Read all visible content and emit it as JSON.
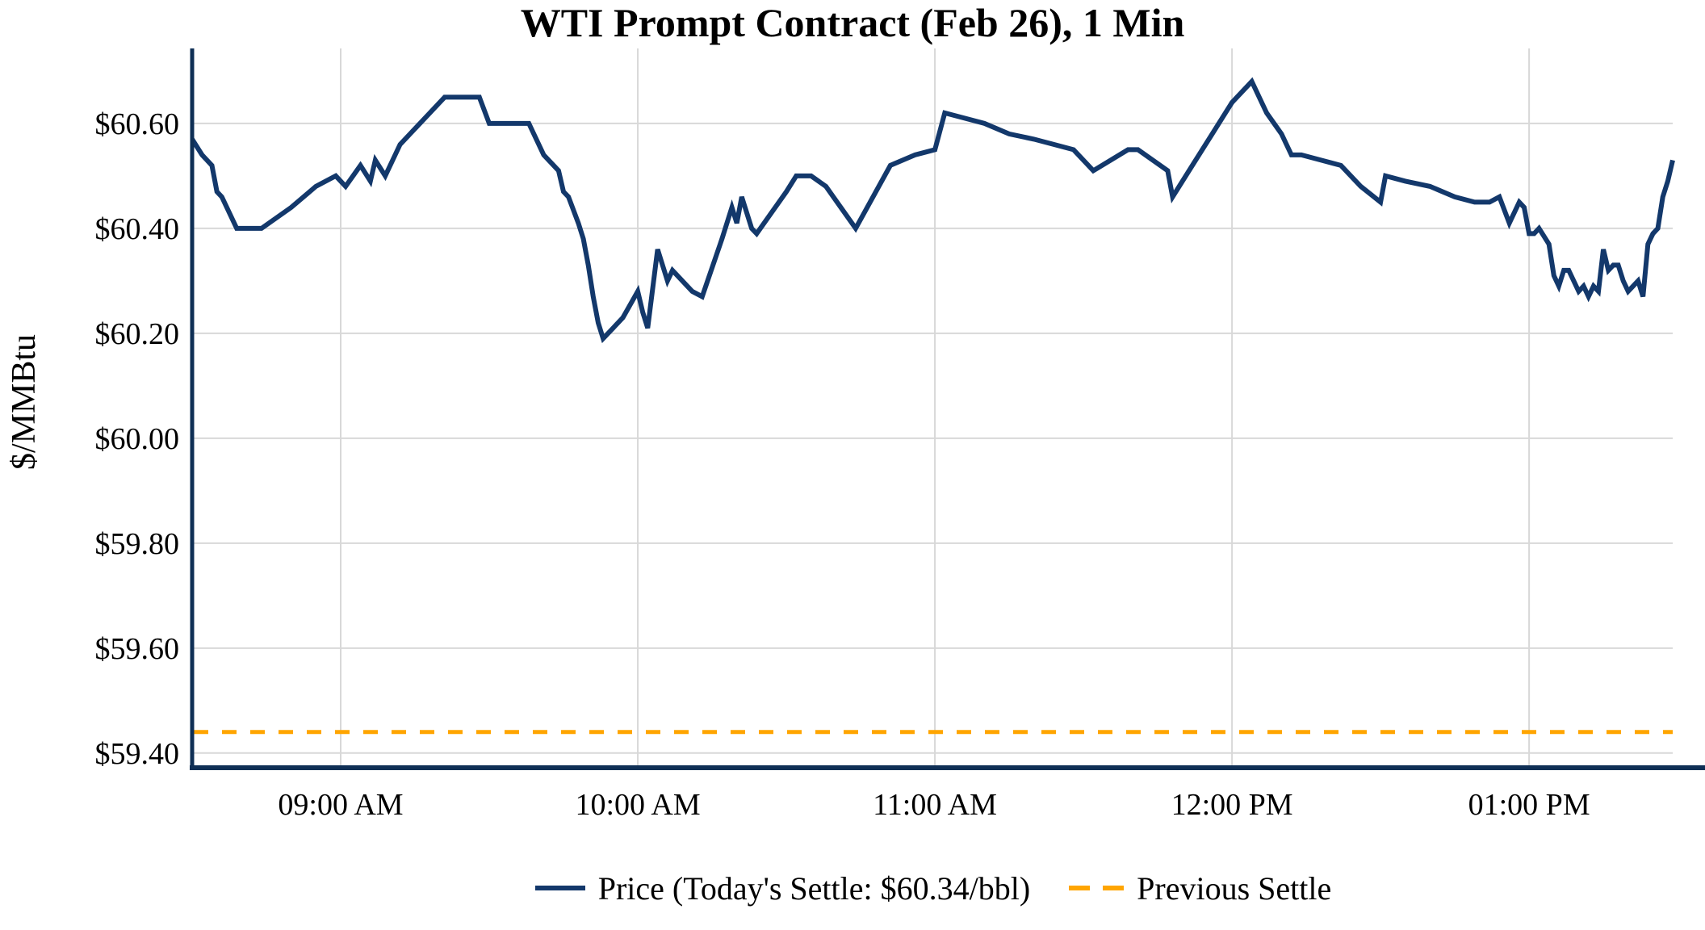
{
  "chart_data": {
    "type": "line",
    "title": "WTI Prompt Contract (Feb 26), 1 Min",
    "ylabel": "$/MMBtu",
    "grid": true,
    "legend_position": "bottom-center",
    "x_axis": {
      "xlim_minutes": [
        0,
        299
      ],
      "minutes_origin": "08:30 AM",
      "ticks": [
        {
          "minute": 30,
          "label": "09:00 AM"
        },
        {
          "minute": 90,
          "label": "10:00 AM"
        },
        {
          "minute": 150,
          "label": "11:00 AM"
        },
        {
          "minute": 210,
          "label": "12:00 PM"
        },
        {
          "minute": 270,
          "label": "01:00 PM"
        }
      ]
    },
    "y_axis": {
      "ylim": [
        59.372,
        60.743
      ],
      "ticks": [
        {
          "value": 60.6,
          "label": "$60.60"
        },
        {
          "value": 60.4,
          "label": "$60.40"
        },
        {
          "value": 60.2,
          "label": "$60.20"
        },
        {
          "value": 60.0,
          "label": "$60.00"
        },
        {
          "value": 59.8,
          "label": "$59.80"
        },
        {
          "value": 59.6,
          "label": "$59.60"
        },
        {
          "value": 59.4,
          "label": "$59.40"
        }
      ]
    },
    "today_settle_per_bbl": 60.34,
    "previous_settle": 59.44,
    "series": [
      {
        "name": "Price (Today's Settle: $60.34/bbl)",
        "kind": "line",
        "style": "solid",
        "color": "#13386b",
        "points_min_price": [
          [
            0,
            60.57
          ],
          [
            2,
            60.54
          ],
          [
            4,
            60.52
          ],
          [
            5,
            60.47
          ],
          [
            6,
            60.46
          ],
          [
            9,
            60.4
          ],
          [
            14,
            60.4
          ],
          [
            20,
            60.44
          ],
          [
            25,
            60.48
          ],
          [
            29,
            60.5
          ],
          [
            31,
            60.48
          ],
          [
            34,
            60.52
          ],
          [
            36,
            60.49
          ],
          [
            37,
            60.53
          ],
          [
            39,
            60.5
          ],
          [
            42,
            60.56
          ],
          [
            45,
            60.59
          ],
          [
            48,
            60.62
          ],
          [
            51,
            60.65
          ],
          [
            58,
            60.65
          ],
          [
            60,
            60.6
          ],
          [
            68,
            60.6
          ],
          [
            71,
            60.54
          ],
          [
            74,
            60.51
          ],
          [
            75,
            60.47
          ],
          [
            76,
            60.46
          ],
          [
            78,
            60.41
          ],
          [
            79,
            60.38
          ],
          [
            80,
            60.33
          ],
          [
            81,
            60.27
          ],
          [
            82,
            60.22
          ],
          [
            83,
            60.19
          ],
          [
            85,
            60.21
          ],
          [
            87,
            60.23
          ],
          [
            90,
            60.28
          ],
          [
            91,
            60.24
          ],
          [
            92,
            60.21
          ],
          [
            94,
            60.36
          ],
          [
            95,
            60.33
          ],
          [
            96,
            60.3
          ],
          [
            97,
            60.32
          ],
          [
            101,
            60.28
          ],
          [
            103,
            60.27
          ],
          [
            107,
            60.38
          ],
          [
            109,
            60.44
          ],
          [
            110,
            60.41
          ],
          [
            111,
            60.46
          ],
          [
            113,
            60.4
          ],
          [
            114,
            60.39
          ],
          [
            117,
            60.43
          ],
          [
            120,
            60.47
          ],
          [
            122,
            60.5
          ],
          [
            125,
            60.5
          ],
          [
            128,
            60.48
          ],
          [
            131,
            60.44
          ],
          [
            134,
            60.4
          ],
          [
            141,
            60.52
          ],
          [
            146,
            60.54
          ],
          [
            150,
            60.55
          ],
          [
            152,
            60.62
          ],
          [
            156,
            60.61
          ],
          [
            160,
            60.6
          ],
          [
            165,
            60.58
          ],
          [
            170,
            60.57
          ],
          [
            174,
            60.56
          ],
          [
            178,
            60.55
          ],
          [
            182,
            60.51
          ],
          [
            189,
            60.55
          ],
          [
            191,
            60.55
          ],
          [
            197,
            60.51
          ],
          [
            198,
            60.46
          ],
          [
            202,
            60.52
          ],
          [
            206,
            60.58
          ],
          [
            210,
            60.64
          ],
          [
            214,
            60.68
          ],
          [
            217,
            60.62
          ],
          [
            220,
            60.58
          ],
          [
            222,
            60.54
          ],
          [
            224,
            60.54
          ],
          [
            228,
            60.53
          ],
          [
            232,
            60.52
          ],
          [
            236,
            60.48
          ],
          [
            240,
            60.45
          ],
          [
            241,
            60.5
          ],
          [
            245,
            60.49
          ],
          [
            250,
            60.48
          ],
          [
            255,
            60.46
          ],
          [
            259,
            60.45
          ],
          [
            262,
            60.45
          ],
          [
            264,
            60.46
          ],
          [
            266,
            60.41
          ],
          [
            268,
            60.45
          ],
          [
            269,
            60.44
          ],
          [
            270,
            60.39
          ],
          [
            271,
            60.39
          ],
          [
            272,
            60.4
          ],
          [
            274,
            60.37
          ],
          [
            275,
            60.31
          ],
          [
            276,
            60.29
          ],
          [
            277,
            60.32
          ],
          [
            278,
            60.32
          ],
          [
            280,
            60.28
          ],
          [
            281,
            60.29
          ],
          [
            282,
            60.27
          ],
          [
            283,
            60.29
          ],
          [
            284,
            60.28
          ],
          [
            285,
            60.36
          ],
          [
            286,
            60.32
          ],
          [
            287,
            60.33
          ],
          [
            288,
            60.33
          ],
          [
            289,
            60.3
          ],
          [
            290,
            60.28
          ],
          [
            291,
            60.29
          ],
          [
            292,
            60.3
          ],
          [
            293,
            60.27
          ],
          [
            294,
            60.37
          ],
          [
            295,
            60.39
          ],
          [
            296,
            60.4
          ],
          [
            297,
            60.46
          ],
          [
            298,
            60.49
          ],
          [
            299,
            60.53
          ]
        ]
      },
      {
        "name": "Previous Settle",
        "kind": "hline",
        "style": "dashed",
        "color": "#ffa500",
        "value": 59.44
      }
    ]
  },
  "colors": {
    "price_line": "#13386b",
    "previous_settle": "#ffa500",
    "gridline": "#d8d8d8",
    "axis_spine": "#0f2f55",
    "background": "#ffffff",
    "text": "#000000"
  }
}
